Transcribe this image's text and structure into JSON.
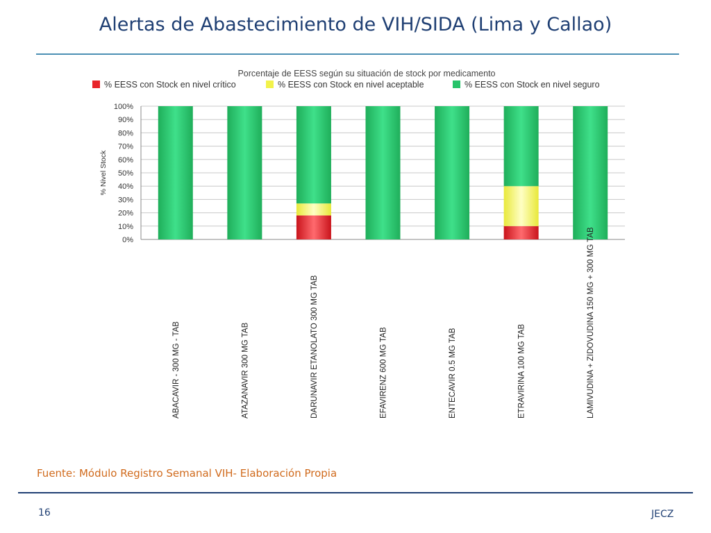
{
  "slide": {
    "title": "Alertas de Abastecimiento de VIH/SIDA (Lima y Callao)",
    "source": "Fuente: Módulo Registro Semanal VIH- Elaboración Propia",
    "page_number": "16",
    "author": "JECZ"
  },
  "chart_data": {
    "type": "bar",
    "stacked": true,
    "title": "Porcentaje de EESS según su situación de stock por medicamento",
    "ylabel": "% Nivel Stock",
    "xlabel": "",
    "ylim": [
      0,
      100
    ],
    "yticks": [
      "0%",
      "10%",
      "20%",
      "30%",
      "40%",
      "50%",
      "60%",
      "70%",
      "80%",
      "90%",
      "100%"
    ],
    "grid": true,
    "legend_position": "top",
    "categories": [
      "ABACAVIR - 300 MG - TAB",
      "ATAZANAVIR 300 MG TAB",
      "DARUNAVIR ETANOLATO 300 MG TAB",
      "EFAVIRENZ 600 MG TAB",
      "ENTECAVIR 0.5 MG TAB",
      "ETRAVIRINA 100 MG TAB",
      "LAMIVUDINA + ZIDOVUDINA 150 MG + 300 MG TAB"
    ],
    "series": [
      {
        "name": "% EESS con Stock en nivel crítico",
        "color": "#e8242a",
        "values": [
          0,
          0,
          18,
          0,
          0,
          10,
          0
        ]
      },
      {
        "name": "% EESS con Stock en nivel aceptable",
        "color": "#f2f24a",
        "values": [
          0,
          0,
          9,
          0,
          0,
          30,
          0
        ]
      },
      {
        "name": "% EESS con Stock en nivel seguro",
        "color": "#27c36a",
        "values": [
          100,
          100,
          73,
          100,
          100,
          60,
          100
        ]
      }
    ]
  }
}
